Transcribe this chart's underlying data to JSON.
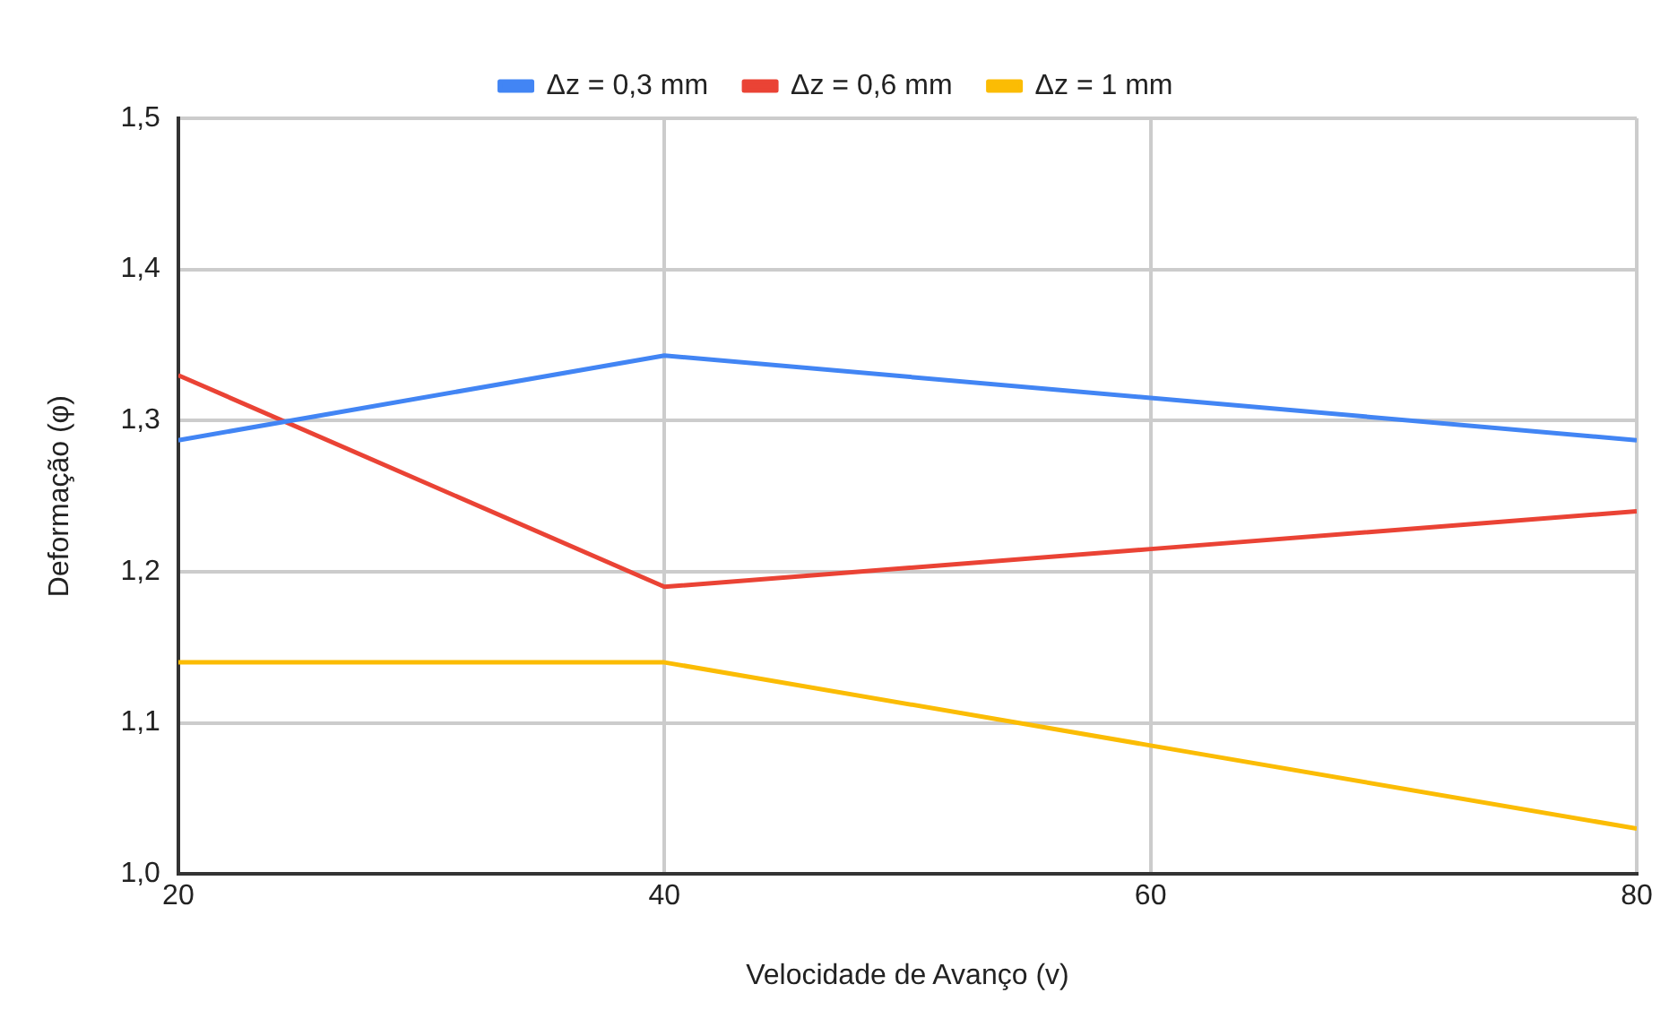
{
  "chart_data": {
    "type": "line",
    "xlabel": "Velocidade de Avanço (v)",
    "ylabel": "Deformação (φ)",
    "x": [
      20,
      40,
      60,
      80
    ],
    "series": [
      {
        "name": "Δz = 0,3 mm",
        "color": "#4285f4",
        "values": [
          1.287,
          1.343,
          1.315,
          1.287
        ]
      },
      {
        "name": "Δz = 0,6 mm",
        "color": "#ea4335",
        "values": [
          1.33,
          1.19,
          1.215,
          1.24
        ]
      },
      {
        "name": "Δz = 1 mm",
        "color": "#fbbc04",
        "values": [
          1.14,
          1.14,
          1.085,
          1.03
        ]
      }
    ],
    "xlim": [
      20,
      80
    ],
    "xticks": [
      20,
      40,
      60,
      80
    ],
    "ylim": [
      1.0,
      1.5
    ],
    "yticks": [
      {
        "value": 1.0,
        "label": "1,0"
      },
      {
        "value": 1.1,
        "label": "1,1"
      },
      {
        "value": 1.2,
        "label": "1,2"
      },
      {
        "value": 1.3,
        "label": "1,3"
      },
      {
        "value": 1.4,
        "label": "1,4"
      },
      {
        "value": 1.5,
        "label": "1,5"
      }
    ],
    "grid": true,
    "legend": "top",
    "marker": "none",
    "line_style": "solid"
  }
}
